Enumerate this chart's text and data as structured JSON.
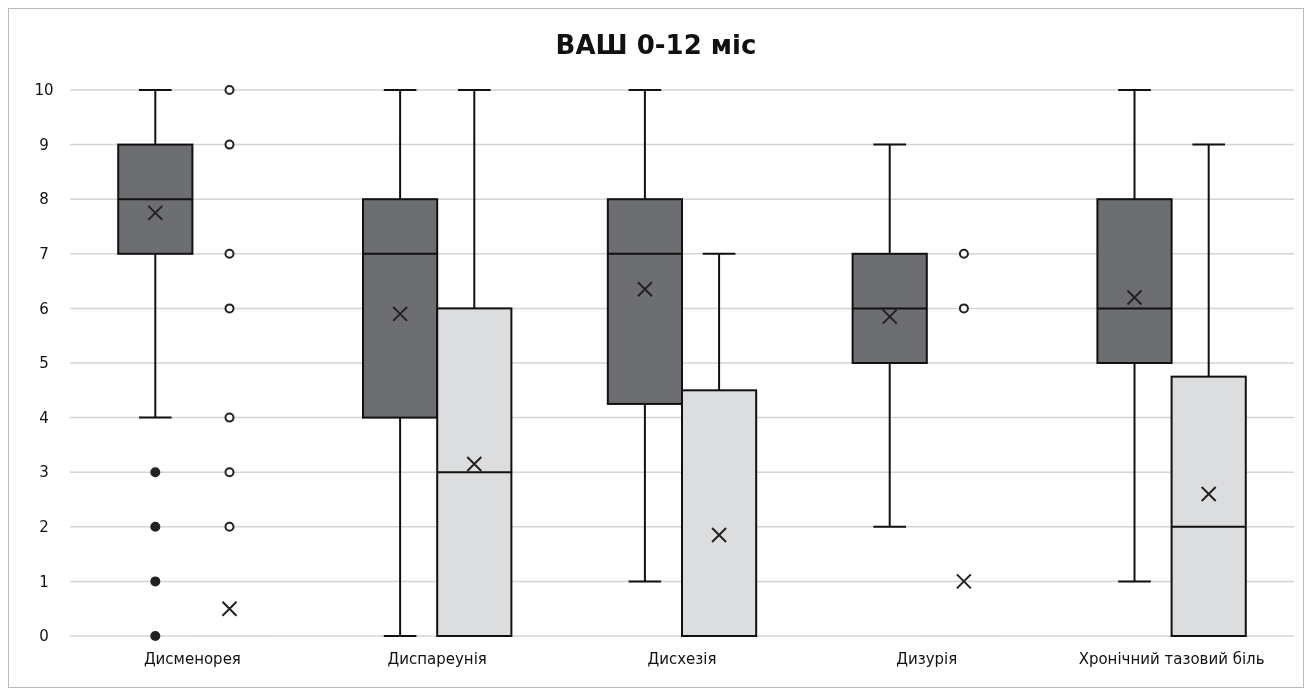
{
  "chart_data": {
    "type": "box",
    "title": "ВАШ 0-12 міс",
    "categories": [
      "Дисменорея",
      "Диспареунія",
      "Дисхезія",
      "Дизурія",
      "Хронічний тазовий біль"
    ],
    "ylim": [
      0,
      10
    ],
    "yticks": [
      0,
      1,
      2,
      3,
      4,
      5,
      6,
      7,
      8,
      9,
      10
    ],
    "grid": "y",
    "marker": "cross",
    "series": [
      {
        "color": "#6d6e71",
        "boxes": [
          {
            "low": 4,
            "q1": 7,
            "median": 8,
            "q3": 9,
            "high": 10,
            "mean": 7.75,
            "outliers": [
              3,
              2,
              1,
              0
            ]
          },
          {
            "low": 0,
            "q1": 4,
            "median": 7,
            "q3": 8,
            "high": 10,
            "mean": 5.9
          },
          {
            "low": 1,
            "q1": 4.25,
            "median": 7,
            "q3": 8,
            "high": 10,
            "mean": 6.35
          },
          {
            "low": 2,
            "q1": 5,
            "median": 6,
            "q3": 7,
            "high": 9,
            "mean": 5.85
          },
          {
            "low": 1,
            "q1": 5,
            "median": 6,
            "q3": 8,
            "high": 10,
            "mean": 6.2
          }
        ]
      },
      {
        "color": "#dcdddf",
        "boxes": [
          {
            "low": 0,
            "q1": 0,
            "median": 0,
            "q3": 0,
            "high": 0,
            "mean": 0.5,
            "outliers": [
              10,
              9,
              7,
              6,
              4,
              3,
              2
            ]
          },
          {
            "low": 0,
            "q1": 0,
            "median": 3,
            "q3": 6,
            "high": 10,
            "mean": 3.15
          },
          {
            "low": 0,
            "q1": 0,
            "median": 0,
            "q3": 4.5,
            "high": 7,
            "mean": 1.85
          },
          {
            "low": 0,
            "q1": 0,
            "median": 0,
            "q3": 0,
            "high": 0,
            "mean": 1,
            "outliers": [
              7,
              6
            ]
          },
          {
            "low": 0,
            "q1": 0,
            "median": 2,
            "q3": 4.75,
            "high": 9,
            "mean": 2.6
          }
        ]
      }
    ]
  }
}
